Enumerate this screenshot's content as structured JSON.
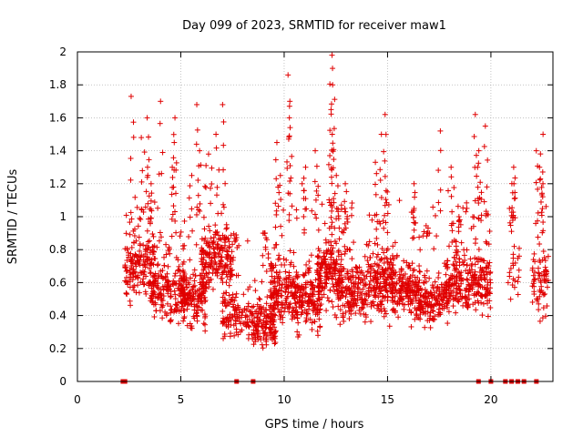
{
  "chart_data": {
    "type": "scatter",
    "title": "Day 099 of 2023, SRMTID for receiver maw1",
    "xlabel": "GPS time / hours",
    "ylabel": "SRMTID / TECUs",
    "xlim": [
      0,
      23
    ],
    "ylim": [
      0,
      2
    ],
    "x_ticks": [
      0,
      5,
      10,
      15,
      20
    ],
    "x_tick_labels": [
      "0",
      "5",
      "10",
      "15",
      "20"
    ],
    "y_ticks": [
      0,
      0.2,
      0.4,
      0.6,
      0.8,
      1,
      1.2,
      1.4,
      1.6,
      1.8,
      2
    ],
    "y_tick_labels": [
      "0",
      "0.2",
      "0.4",
      "0.6",
      "0.8",
      "1",
      "1.2",
      "1.4",
      "1.6",
      "1.8",
      "2"
    ],
    "grid": true,
    "marker": "plus",
    "color": "#e00000",
    "zero_markers_x": [
      2.2,
      2.3,
      7.7,
      8.5,
      19.4,
      20.0,
      20.7,
      21.0,
      21.3,
      21.6,
      22.2
    ],
    "clusters": [
      {
        "x_start": 2.3,
        "x_end": 3.8,
        "y_center": 0.7,
        "y_spread": 0.35,
        "count": 180,
        "peaks": [
          1.73,
          1.6,
          1.48,
          1.3,
          1.2
        ]
      },
      {
        "x_start": 3.5,
        "x_end": 5.2,
        "y_center": 0.55,
        "y_spread": 0.3,
        "count": 190,
        "peaks": [
          1.7,
          1.6,
          1.45,
          1.3
        ]
      },
      {
        "x_start": 5.0,
        "x_end": 6.2,
        "y_center": 0.5,
        "y_spread": 0.3,
        "count": 150,
        "peaks": [
          1.68,
          1.4,
          1.25
        ]
      },
      {
        "x_start": 6.0,
        "x_end": 7.5,
        "y_center": 0.75,
        "y_spread": 0.35,
        "count": 190,
        "peaks": [
          1.68,
          1.5,
          1.38
        ]
      },
      {
        "x_start": 7.0,
        "x_end": 8.3,
        "y_center": 0.4,
        "y_spread": 0.25,
        "count": 110,
        "peaks": [
          0.85
        ]
      },
      {
        "x_start": 8.3,
        "x_end": 9.6,
        "y_center": 0.35,
        "y_spread": 0.25,
        "count": 150,
        "peaks": [
          0.9,
          0.75
        ]
      },
      {
        "x_start": 9.3,
        "x_end": 10.6,
        "y_center": 0.55,
        "y_spread": 0.35,
        "count": 180,
        "peaks": [
          1.86,
          1.7,
          1.6,
          1.45,
          1.25
        ]
      },
      {
        "x_start": 10.5,
        "x_end": 11.8,
        "y_center": 0.5,
        "y_spread": 0.3,
        "count": 170,
        "peaks": [
          1.4,
          1.3,
          1.2
        ]
      },
      {
        "x_start": 11.6,
        "x_end": 12.8,
        "y_center": 0.65,
        "y_spread": 0.35,
        "count": 190,
        "peaks": [
          1.98,
          1.9,
          1.8,
          1.65,
          1.5,
          1.25
        ]
      },
      {
        "x_start": 12.6,
        "x_end": 14.0,
        "y_center": 0.55,
        "y_spread": 0.3,
        "count": 170,
        "peaks": [
          1.2,
          1.05
        ]
      },
      {
        "x_start": 14.0,
        "x_end": 15.3,
        "y_center": 0.6,
        "y_spread": 0.35,
        "count": 190,
        "peaks": [
          1.62,
          1.5,
          1.33,
          1.15
        ]
      },
      {
        "x_start": 15.2,
        "x_end": 16.6,
        "y_center": 0.55,
        "y_spread": 0.3,
        "count": 180,
        "peaks": [
          1.2,
          1.05
        ]
      },
      {
        "x_start": 16.5,
        "x_end": 18.0,
        "y_center": 0.5,
        "y_spread": 0.25,
        "count": 170,
        "peaks": [
          1.52,
          0.9
        ]
      },
      {
        "x_start": 17.8,
        "x_end": 19.0,
        "y_center": 0.6,
        "y_spread": 0.3,
        "count": 150,
        "peaks": [
          1.3,
          1.0
        ]
      },
      {
        "x_start": 19.0,
        "x_end": 20.0,
        "y_center": 0.6,
        "y_spread": 0.3,
        "count": 130,
        "peaks": [
          1.62,
          1.55,
          1.4,
          1.3
        ]
      },
      {
        "x_start": 20.8,
        "x_end": 21.4,
        "y_center": 0.7,
        "y_spread": 0.4,
        "count": 25,
        "peaks": [
          1.3,
          1.2,
          1.05
        ]
      },
      {
        "x_start": 22.0,
        "x_end": 22.8,
        "y_center": 0.6,
        "y_spread": 0.4,
        "count": 70,
        "peaks": [
          1.5,
          1.4,
          1.3,
          1.2
        ]
      }
    ]
  }
}
